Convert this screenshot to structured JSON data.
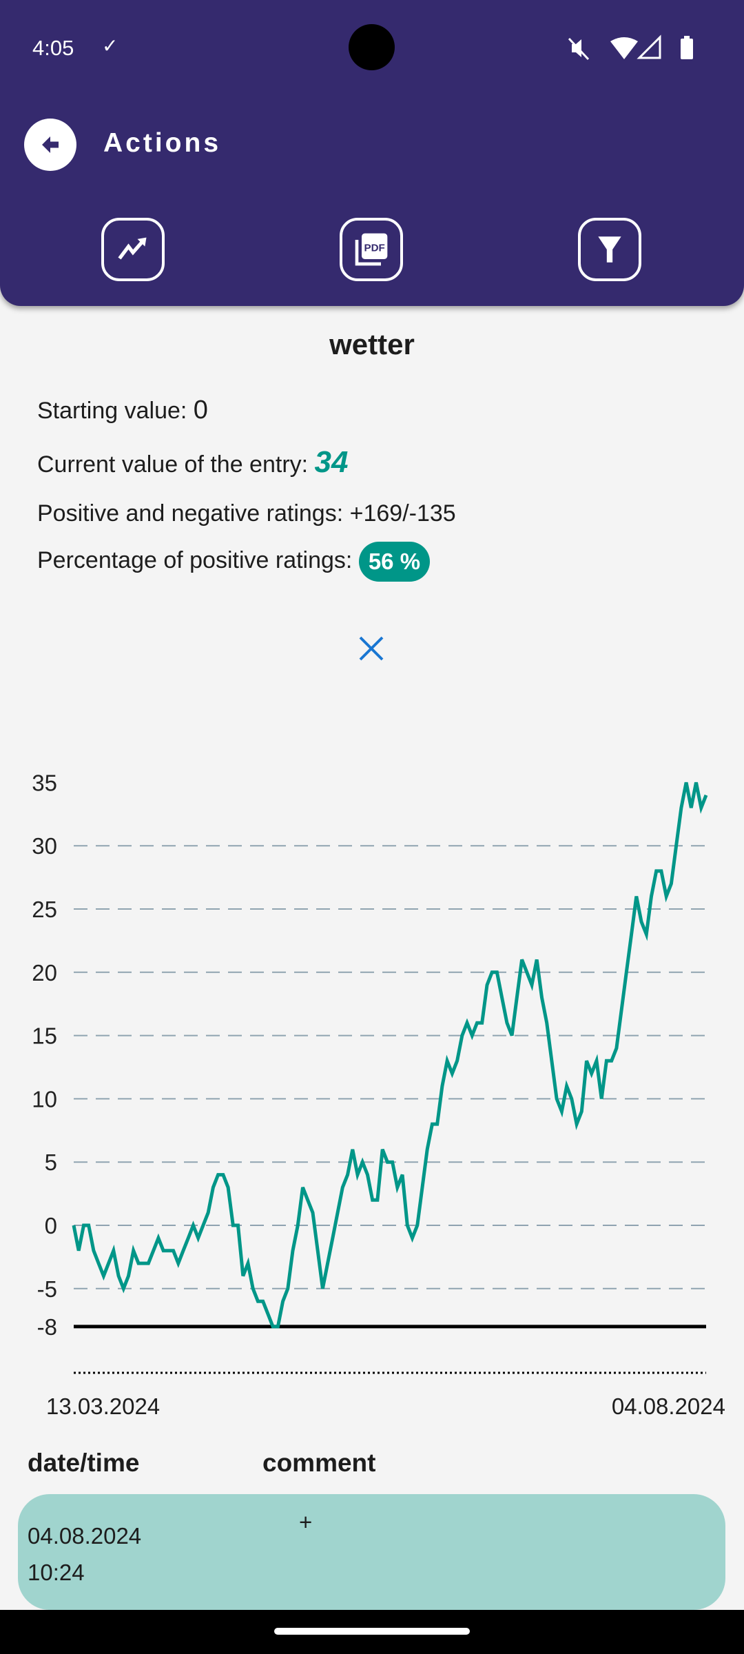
{
  "status_bar": {
    "time": "4:05",
    "icons": [
      "download-done-icon",
      "mute-icon",
      "wifi-icon",
      "signal-icon",
      "battery-icon"
    ]
  },
  "header": {
    "title": "Actions",
    "back_icon": "arrow-back-icon",
    "actions": [
      {
        "icon": "trending-up-icon"
      },
      {
        "icon": "pdf-icon"
      },
      {
        "icon": "filter-icon"
      }
    ]
  },
  "entry": {
    "name": "wetter",
    "starting_label": "Starting value: ",
    "starting_value": "0",
    "current_label": "Current value of the entry: ",
    "current_value": "34",
    "ratings_label": "Positive and negative ratings:  ",
    "ratings_value": "+169/-135",
    "percentage_label": "Percentage of positive ratings: ",
    "percentage_value": "56 %"
  },
  "colors": {
    "header": "#352a6e",
    "accent": "#009688",
    "row": "#a0d4ce",
    "close": "#1976d2"
  },
  "chart_data": {
    "type": "line",
    "title": "",
    "xlabel": "",
    "ylabel": "",
    "x_start": "13.03.2024",
    "x_end": "04.08.2024",
    "yticks": [
      35,
      30,
      25,
      20,
      15,
      10,
      5,
      0,
      -5,
      -8
    ],
    "ylim": [
      -8,
      35
    ],
    "grid": "horizontal dashed",
    "baseline": -8,
    "series": [
      {
        "color": "#009688",
        "values": [
          0,
          -2,
          0,
          0,
          -2,
          -3,
          -4,
          -3,
          -2,
          -4,
          -5,
          -4,
          -2,
          -3,
          -3,
          -3,
          -2,
          -1,
          -2,
          -2,
          -2,
          -3,
          -2,
          -1,
          0,
          -1,
          0,
          1,
          3,
          4,
          4,
          3,
          0,
          0,
          -4,
          -3,
          -5,
          -6,
          -6,
          -7,
          -8,
          -8,
          -6,
          -5,
          -2,
          0,
          3,
          2,
          1,
          -2,
          -5,
          -3,
          -1,
          1,
          3,
          4,
          6,
          4,
          5,
          4,
          2,
          2,
          6,
          5,
          5,
          3,
          4,
          0,
          -1,
          0,
          3,
          6,
          8,
          8,
          11,
          13,
          12,
          13,
          15,
          16,
          15,
          16,
          16,
          19,
          20,
          20,
          18,
          16,
          15,
          18,
          21,
          20,
          19,
          21,
          18,
          16,
          13,
          10,
          9,
          11,
          10,
          8,
          9,
          13,
          12,
          13,
          10,
          13,
          13,
          14,
          17,
          20,
          23,
          26,
          24,
          23,
          26,
          28,
          28,
          26,
          27,
          30,
          33,
          35,
          33,
          35,
          33,
          34
        ]
      }
    ]
  },
  "table": {
    "headers": [
      "date/time",
      "comment"
    ],
    "rows": [
      {
        "date": "04.08.2024",
        "time": "10:24",
        "comment": "+"
      }
    ]
  }
}
